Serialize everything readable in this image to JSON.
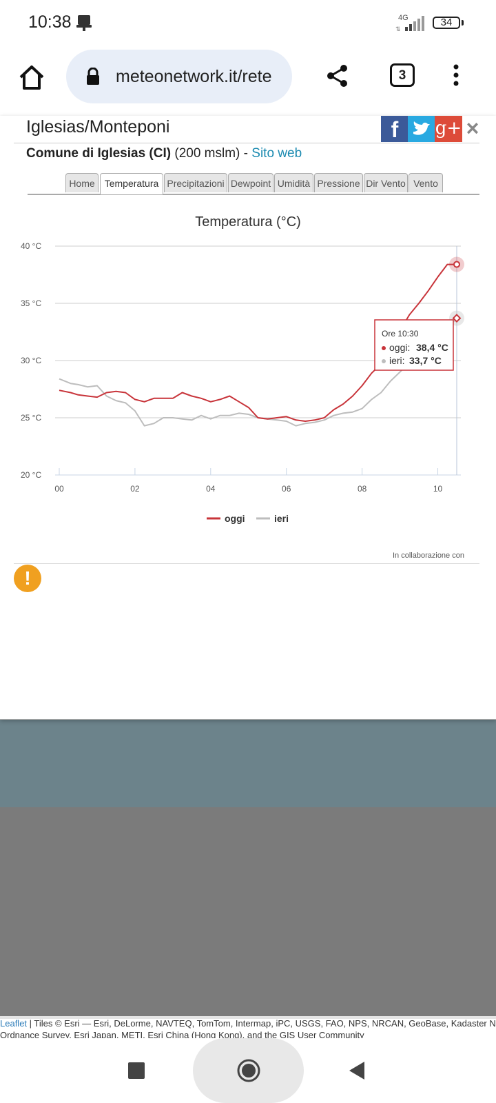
{
  "status_bar": {
    "time": "10:38",
    "network": "4G",
    "battery": "34"
  },
  "browser": {
    "url": "meteonetwork.it/rete",
    "tab_count": "3"
  },
  "popup": {
    "station_title": "Iglesias/Monteponi",
    "comune_bold": "Comune di Iglesias (CI)",
    "altitude": "(200 mslm) -",
    "website_link": "Sito web",
    "tabs": [
      "Home",
      "Temperatura",
      "Precipitazioni",
      "Dewpoint",
      "Umidità",
      "Pressione",
      "Dir Vento",
      "Vento"
    ],
    "active_tab": "Temperatura",
    "credit": "In collaborazione con",
    "social": {
      "facebook": "f",
      "googleplus": "g+"
    },
    "close": "×"
  },
  "colors": {
    "oggi": "#c8343a",
    "ieri": "#bdbdbd",
    "link": "#1a8ab0",
    "url_pill": "#e8eef8"
  },
  "chart_data": {
    "type": "line",
    "title": "Temperatura (°C)",
    "ylim": [
      20,
      40
    ],
    "y_ticks": [
      "20 °C",
      "25 °C",
      "30 °C",
      "35 °C",
      "40 °C"
    ],
    "y_tick_values": [
      20,
      25,
      30,
      35,
      40
    ],
    "xlim": [
      0,
      10.5
    ],
    "x_ticks": [
      "00",
      "02",
      "04",
      "06",
      "08",
      "10"
    ],
    "x_tick_values": [
      0,
      2,
      4,
      6,
      8,
      10
    ],
    "grid": true,
    "legend_position": "bottom-center",
    "series": [
      {
        "name": "oggi",
        "color": "#c8343a",
        "x": [
          0,
          0.3,
          0.5,
          0.75,
          1,
          1.25,
          1.5,
          1.75,
          2,
          2.25,
          2.5,
          2.75,
          3,
          3.25,
          3.5,
          3.75,
          4,
          4.25,
          4.5,
          4.75,
          5,
          5.25,
          5.5,
          5.75,
          6,
          6.25,
          6.5,
          6.75,
          7,
          7.25,
          7.5,
          7.75,
          8,
          8.25,
          8.5,
          8.75,
          9,
          9.25,
          9.5,
          9.75,
          10,
          10.25,
          10.5
        ],
        "y": [
          27.4,
          27.2,
          27.0,
          26.9,
          26.8,
          27.2,
          27.3,
          27.2,
          26.6,
          26.4,
          26.7,
          26.7,
          26.7,
          27.2,
          26.9,
          26.7,
          26.4,
          26.6,
          26.9,
          26.4,
          25.9,
          25.0,
          24.9,
          25.0,
          25.1,
          24.8,
          24.7,
          24.8,
          25.0,
          25.7,
          26.2,
          26.9,
          27.8,
          28.9,
          29.7,
          31.0,
          32.6,
          34.0,
          35.0,
          36.1,
          37.3,
          38.4,
          38.4
        ]
      },
      {
        "name": "ieri",
        "color": "#bdbdbd",
        "x": [
          0,
          0.3,
          0.5,
          0.75,
          1,
          1.25,
          1.5,
          1.75,
          2,
          2.25,
          2.5,
          2.75,
          3,
          3.25,
          3.5,
          3.75,
          4,
          4.25,
          4.5,
          4.75,
          5,
          5.25,
          5.5,
          5.75,
          6,
          6.25,
          6.5,
          6.75,
          7,
          7.25,
          7.5,
          7.75,
          8,
          8.25,
          8.5,
          8.75,
          9,
          9.25,
          9.5,
          9.75,
          10,
          10.25,
          10.5
        ],
        "y": [
          28.4,
          28.0,
          27.9,
          27.7,
          27.8,
          26.9,
          26.5,
          26.3,
          25.6,
          24.3,
          24.5,
          25.0,
          25.0,
          24.9,
          24.8,
          25.2,
          24.9,
          25.2,
          25.2,
          25.4,
          25.3,
          25.0,
          24.9,
          24.8,
          24.7,
          24.3,
          24.5,
          24.6,
          24.8,
          25.2,
          25.4,
          25.5,
          25.8,
          26.6,
          27.2,
          28.2,
          29.0,
          29.8,
          30.5,
          31.2,
          31.8,
          32.8,
          33.7
        ]
      }
    ],
    "tooltip": {
      "header": "Ore 10:30",
      "oggi_label": "oggi:",
      "oggi_value": "38,4 °C",
      "ieri_label": "ieri:",
      "ieri_value": "33,7 °C"
    }
  },
  "map": {
    "attribution_link": "Leaflet",
    "attribution_line1": " | Tiles © Esri — Esri, DeLorme, NAVTEQ, TomTom, Intermap, iPC, USGS, FAO, NPS, NRCAN, GeoBase, Kadaster NL,",
    "attribution_line2": "Ordnance Survey, Esri Japan, METI, Esri China (Hong Kong), and the GIS User Community"
  }
}
